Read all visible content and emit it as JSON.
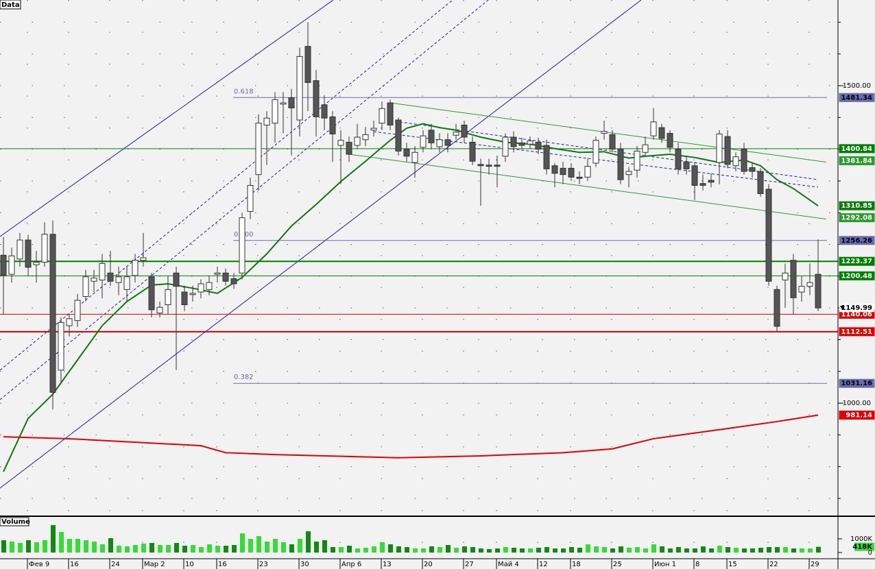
{
  "chart_data": {
    "type": "candlestick",
    "title": "Data",
    "categories": [
      null,
      null,
      null,
      "Фев 9",
      null,
      null,
      null,
      null,
      "16",
      null,
      null,
      null,
      null,
      "24",
      null,
      null,
      null,
      "Мар 2",
      null,
      null,
      null,
      null,
      "10",
      null,
      null,
      null,
      "16",
      null,
      null,
      null,
      null,
      "23",
      null,
      null,
      null,
      null,
      "30",
      null,
      null,
      null,
      null,
      "Апр 6",
      null,
      null,
      null,
      null,
      "13",
      null,
      null,
      null,
      null,
      "20",
      null,
      null,
      null,
      null,
      "27",
      null,
      null,
      null,
      "Май 4",
      null,
      null,
      null,
      null,
      "12",
      null,
      null,
      null,
      "18",
      null,
      null,
      null,
      null,
      "25",
      null,
      null,
      null,
      null,
      "Июн 1",
      null,
      null,
      null,
      null,
      "8",
      null,
      null,
      null,
      "15",
      null,
      null,
      null,
      null,
      "22",
      null,
      null,
      null,
      null,
      "29",
      null
    ],
    "open": [
      1233,
      1203,
      1227,
      1257,
      1218,
      1222,
      1266,
      1052,
      1122,
      1130,
      1168,
      1192,
      1194,
      1205,
      1190,
      1179,
      1201,
      1225,
      1199,
      1142,
      1155,
      1205,
      1175,
      1171,
      1175,
      1179,
      1203,
      1205,
      1196,
      1205,
      1302,
      1360,
      1438,
      1441,
      1471,
      1481,
      1446,
      1562,
      1508,
      1470,
      1451,
      1406,
      1411,
      1406,
      1415,
      1430,
      1441,
      1473,
      1446,
      1400,
      1379,
      1403,
      1430,
      1404,
      1415,
      1422,
      1438,
      1411,
      1376,
      1375,
      1375,
      1389,
      1419,
      1410,
      1408,
      1411,
      1406,
      1374,
      1370,
      1370,
      1356,
      1356,
      1378,
      1425,
      1423,
      1400,
      1360,
      1367,
      1395,
      1421,
      1434,
      1425,
      1400,
      1380,
      1374,
      1346,
      1351,
      1379,
      1420,
      1374,
      1400,
      1371,
      1365,
      1337,
      1179,
      1194,
      1225,
      1175,
      1184,
      1203
    ],
    "high": [
      1262,
      1245,
      1268,
      1265,
      1240,
      1285,
      1288,
      1135,
      1140,
      1172,
      1210,
      1210,
      1235,
      1240,
      1215,
      1215,
      1235,
      1268,
      1205,
      1160,
      1200,
      1215,
      1185,
      1185,
      1195,
      1200,
      1215,
      1212,
      1205,
      1300,
      1355,
      1455,
      1460,
      1490,
      1490,
      1495,
      1560,
      1600,
      1525,
      1485,
      1460,
      1430,
      1420,
      1440,
      1435,
      1445,
      1475,
      1478,
      1450,
      1410,
      1405,
      1430,
      1440,
      1425,
      1425,
      1440,
      1445,
      1420,
      1385,
      1385,
      1390,
      1425,
      1428,
      1418,
      1420,
      1418,
      1415,
      1378,
      1380,
      1378,
      1365,
      1385,
      1420,
      1445,
      1430,
      1410,
      1372,
      1405,
      1420,
      1465,
      1440,
      1430,
      1410,
      1390,
      1380,
      1360,
      1362,
      1430,
      1430,
      1395,
      1410,
      1378,
      1370,
      1345,
      1185,
      1220,
      1235,
      1200,
      1220,
      1258
    ],
    "low": [
      1140,
      1190,
      1215,
      1200,
      1190,
      1215,
      990,
      1030,
      1105,
      1120,
      1160,
      1175,
      1165,
      1185,
      1170,
      1160,
      1190,
      1215,
      1135,
      1135,
      1140,
      1052,
      1145,
      1160,
      1165,
      1170,
      1190,
      1185,
      1180,
      1195,
      1290,
      1335,
      1375,
      1410,
      1425,
      1390,
      1420,
      1460,
      1420,
      1430,
      1380,
      1345,
      1380,
      1400,
      1405,
      1420,
      1430,
      1430,
      1390,
      1380,
      1355,
      1395,
      1400,
      1395,
      1395,
      1415,
      1410,
      1375,
      1311,
      1360,
      1340,
      1380,
      1395,
      1400,
      1400,
      1392,
      1360,
      1340,
      1345,
      1350,
      1345,
      1350,
      1372,
      1415,
      1395,
      1345,
      1340,
      1355,
      1390,
      1415,
      1410,
      1395,
      1360,
      1360,
      1320,
      1335,
      1340,
      1345,
      1370,
      1365,
      1360,
      1355,
      1325,
      1185,
      1112,
      1150,
      1140,
      1160,
      1170,
      1145
    ],
    "close": [
      1201,
      1232,
      1257,
      1214,
      1222,
      1266,
      1017,
      1127,
      1133,
      1162,
      1199,
      1197,
      1220,
      1192,
      1199,
      1199,
      1225,
      1229,
      1147,
      1151,
      1179,
      1184,
      1155,
      1173,
      1188,
      1190,
      1205,
      1192,
      1188,
      1292,
      1343,
      1441,
      1449,
      1478,
      1473,
      1465,
      1546,
      1505,
      1451,
      1449,
      1424,
      1414,
      1392,
      1419,
      1423,
      1433,
      1464,
      1438,
      1397,
      1389,
      1395,
      1421,
      1410,
      1415,
      1406,
      1427,
      1419,
      1381,
      1374,
      1373,
      1373,
      1419,
      1404,
      1406,
      1413,
      1400,
      1369,
      1362,
      1360,
      1356,
      1354,
      1373,
      1414,
      1428,
      1400,
      1352,
      1365,
      1397,
      1407,
      1443,
      1417,
      1403,
      1369,
      1369,
      1343,
      1343,
      1348,
      1424,
      1376,
      1388,
      1365,
      1365,
      1330,
      1192,
      1121,
      1205,
      1166,
      1184,
      1190,
      1149.99
    ],
    "up_color": "#ffffff",
    "down_color": "#555555",
    "ylim": [
      823,
      1635
    ],
    "yticks": [
      {
        "value": 1000,
        "label": "1000.00"
      },
      {
        "value": 1500,
        "label": "1500.00"
      }
    ],
    "minor_yticks": [
      850,
      900,
      950,
      1000,
      1050,
      1100,
      1150,
      1200,
      1250,
      1300,
      1350,
      1400,
      1450,
      1500,
      1550,
      1600
    ],
    "grid": true,
    "ma_lines": [
      {
        "color": "#0a7a0a",
        "x": [
          0,
          3,
          6,
          9,
          12,
          15,
          18,
          20,
          23,
          26,
          29,
          32,
          35,
          38,
          41,
          44,
          47,
          49,
          51,
          53,
          55,
          58,
          61,
          64,
          67,
          70,
          73,
          76,
          78,
          81,
          84,
          87,
          90,
          92,
          94,
          96,
          99
        ],
        "values": [
          892,
          976,
          1014,
          1068,
          1122,
          1160,
          1186,
          1188,
          1181,
          1173,
          1198,
          1235,
          1279,
          1313,
          1349,
          1381,
          1414,
          1433,
          1440,
          1434,
          1430,
          1419,
          1411,
          1408,
          1401,
          1395,
          1396,
          1386,
          1389,
          1392,
          1387,
          1379,
          1383,
          1374,
          1352,
          1338,
          1310.85
        ]
      },
      {
        "color": "#e00000",
        "x": [
          0,
          8,
          24,
          27,
          33,
          48,
          58,
          68,
          74,
          79,
          88,
          94,
          99
        ],
        "values": [
          947,
          944,
          933,
          922,
          919,
          914,
          917,
          922,
          928,
          944,
          960,
          971,
          981.14
        ]
      }
    ],
    "channel": {
      "color": "#2a9a2a",
      "upper_x": [
        47,
        99
      ],
      "upper": [
        1473,
        1381.84
      ],
      "lower_x": [
        42,
        99
      ],
      "lower": [
        1392,
        1292.08
      ]
    },
    "levels": [
      {
        "value": 1400.84,
        "color": "#008000",
        "width": 1
      },
      {
        "value": 1223.37,
        "color": "#008000",
        "width": 2
      },
      {
        "value": 1200.48,
        "color": "#008000",
        "width": 1
      },
      {
        "value": 1140.06,
        "color": "#e00000",
        "width": 1
      },
      {
        "value": 1112.51,
        "color": "#e00000",
        "width": 2
      }
    ],
    "fib_color": "#6a6aae",
    "fib": [
      {
        "label": "0.618",
        "value": 1481.34
      },
      {
        "label": "0.500",
        "value": 1256.26
      },
      {
        "label": "0.382",
        "value": 1031.16
      }
    ],
    "volume": {
      "title": "Volume",
      "values": [
        900,
        800,
        700,
        900,
        750,
        900,
        2000,
        1500,
        1000,
        1000,
        900,
        800,
        600,
        1050,
        500,
        450,
        550,
        650,
        700,
        550,
        550,
        700,
        500,
        550,
        400,
        600,
        500,
        500,
        550,
        1400,
        1000,
        1200,
        800,
        1000,
        750,
        600,
        1000,
        1550,
        800,
        900,
        400,
        400,
        500,
        300,
        350,
        450,
        750,
        600,
        450,
        400,
        300,
        300,
        450,
        400,
        550,
        350,
        450,
        400,
        300,
        250,
        300,
        400,
        350,
        300,
        300,
        350,
        400,
        300,
        300,
        400,
        350,
        600,
        450,
        400,
        300,
        450,
        350,
        400,
        300,
        600,
        450,
        300,
        400,
        300,
        300,
        450,
        300,
        500,
        400,
        350,
        300,
        300,
        350,
        400,
        400,
        400,
        300,
        300,
        300,
        418
      ],
      "value_labels": [
        null,
        null,
        null,
        null,
        null,
        null,
        null,
        null,
        null,
        null,
        null,
        null,
        null,
        null,
        null,
        null,
        null,
        null,
        null,
        null,
        null,
        null,
        null,
        null,
        null,
        null,
        null,
        null,
        null,
        null,
        null,
        null,
        null,
        null,
        null,
        null,
        null,
        null,
        null,
        null,
        null,
        null,
        null,
        null,
        null,
        null,
        null,
        null,
        null,
        null,
        null,
        null,
        null,
        null,
        null,
        null,
        null,
        null,
        null,
        null,
        null,
        null,
        null,
        null,
        null,
        null,
        null,
        null,
        null,
        null,
        null,
        null,
        null,
        null,
        null,
        null,
        null,
        null,
        null,
        null,
        null,
        null,
        null,
        null,
        null,
        null,
        null,
        null,
        null,
        null,
        null,
        null,
        null,
        null,
        null,
        null,
        null,
        null,
        null,
        "418K"
      ],
      "ylim": [
        0,
        2100
      ],
      "yticks": [
        {
          "value": 1000,
          "label": "1000K"
        },
        {
          "value": 0,
          "label": "0"
        }
      ],
      "up_color": "#33dd33",
      "down_color": "#108a10"
    }
  }
}
